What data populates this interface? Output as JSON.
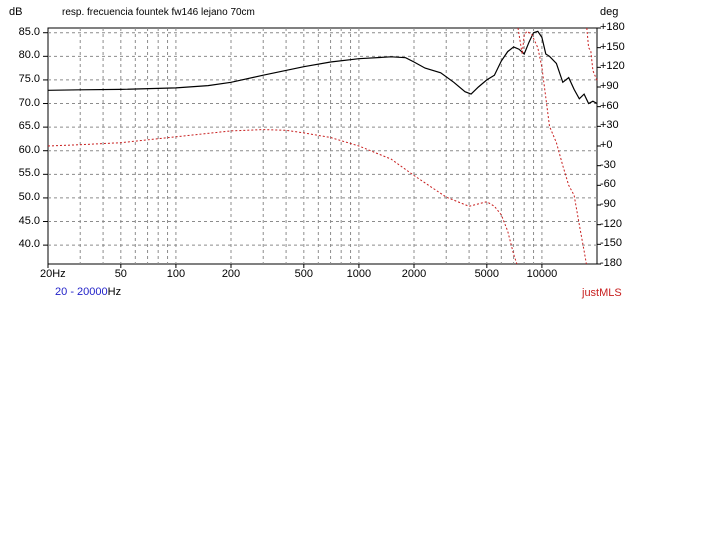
{
  "chart_data": {
    "type": "line",
    "title": "resp. frecuencia fountek fw146 lejano 70cm",
    "ylabel_left": "dB",
    "ylabel_right": "deg",
    "x_scale": "log",
    "xlim": [
      20,
      20000
    ],
    "ylim_left": [
      36,
      86
    ],
    "ylim_right": [
      -180,
      180
    ],
    "grid": true,
    "x_ticks": [
      {
        "value": 20,
        "label": "20Hz"
      },
      {
        "value": 50,
        "label": "50"
      },
      {
        "value": 100,
        "label": "100"
      },
      {
        "value": 200,
        "label": "200"
      },
      {
        "value": 500,
        "label": "500"
      },
      {
        "value": 1000,
        "label": "1000"
      },
      {
        "value": 2000,
        "label": "2000"
      },
      {
        "value": 5000,
        "label": "5000"
      },
      {
        "value": 10000,
        "label": "10000"
      }
    ],
    "y_ticks_left": [
      {
        "value": 85,
        "label": "85.0"
      },
      {
        "value": 80,
        "label": "80.0"
      },
      {
        "value": 75,
        "label": "75.0"
      },
      {
        "value": 70,
        "label": "70.0"
      },
      {
        "value": 65,
        "label": "65.0"
      },
      {
        "value": 60,
        "label": "60.0"
      },
      {
        "value": 55,
        "label": "55.0"
      },
      {
        "value": 50,
        "label": "50.0"
      },
      {
        "value": 45,
        "label": "45.0"
      },
      {
        "value": 40,
        "label": "40.0"
      }
    ],
    "y_ticks_right": [
      {
        "value": 180,
        "label": "+180"
      },
      {
        "value": 150,
        "label": "+150"
      },
      {
        "value": 120,
        "label": "+120"
      },
      {
        "value": 90,
        "label": "+90"
      },
      {
        "value": 60,
        "label": "+60"
      },
      {
        "value": 30,
        "label": "+30"
      },
      {
        "value": 0,
        "label": "+0"
      },
      {
        "value": -30,
        "label": "-30"
      },
      {
        "value": -60,
        "label": "-60"
      },
      {
        "value": -90,
        "label": "-90"
      },
      {
        "value": -120,
        "label": "-120"
      },
      {
        "value": -150,
        "label": "-150"
      },
      {
        "value": -180,
        "label": "-180"
      }
    ],
    "series": [
      {
        "axis": "left",
        "color": "#000000",
        "style": "solid",
        "x": [
          20,
          30,
          50,
          100,
          150,
          200,
          300,
          500,
          700,
          1000,
          1500,
          1800,
          2000,
          2300,
          2800,
          3300,
          3800,
          4100,
          4500,
          5000,
          5500,
          6000,
          6500,
          7000,
          7500,
          8000,
          8500,
          9000,
          9500,
          10000,
          10500,
          11000,
          12000,
          13000,
          14000,
          15000,
          16000,
          17000,
          18000,
          19000,
          20000
        ],
        "values": [
          72.8,
          72.9,
          73.0,
          73.3,
          73.8,
          74.5,
          76.0,
          77.8,
          78.8,
          79.5,
          79.9,
          79.7,
          78.8,
          77.5,
          76.5,
          74.5,
          72.5,
          72.0,
          73.5,
          75.0,
          76.0,
          79.0,
          81.0,
          82.0,
          81.5,
          80.5,
          83.0,
          85.0,
          85.3,
          84.0,
          80.5,
          80.0,
          78.5,
          74.5,
          75.5,
          73.0,
          71.0,
          72.0,
          70.0,
          70.5,
          70.0
        ]
      },
      {
        "axis": "right",
        "color": "#c81f1f",
        "style": "dashed",
        "x": [
          20,
          30,
          50,
          100,
          200,
          300,
          400,
          500,
          700,
          1000,
          1500,
          2000,
          3000,
          4000,
          5000,
          5500,
          6000,
          6500,
          7000,
          7300
        ],
        "values": [
          0,
          2,
          5,
          14,
          23,
          25,
          24,
          20,
          13,
          0,
          -20,
          -45,
          -78,
          -92,
          -85,
          -92,
          -105,
          -130,
          -165,
          -180
        ]
      },
      {
        "axis": "right",
        "color": "#c81f1f",
        "style": "dashed",
        "x": [
          7400,
          7800,
          8000,
          8300,
          8800,
          9500,
          10000,
          11000,
          12000,
          13000,
          14000,
          15000,
          16000,
          17000,
          17500
        ],
        "values": [
          180,
          140,
          170,
          175,
          170,
          150,
          120,
          30,
          5,
          -30,
          -60,
          -75,
          -120,
          -160,
          -180
        ]
      },
      {
        "axis": "right",
        "color": "#c81f1f",
        "style": "dashed",
        "x": [
          17600,
          18000,
          18500,
          19000,
          20000
        ],
        "values": [
          180,
          150,
          145,
          115,
          100
        ]
      }
    ]
  },
  "footer": {
    "range_start": "20",
    "range_sep": "-",
    "range_end": "20000",
    "range_unit": "Hz",
    "brand": "justMLS"
  }
}
